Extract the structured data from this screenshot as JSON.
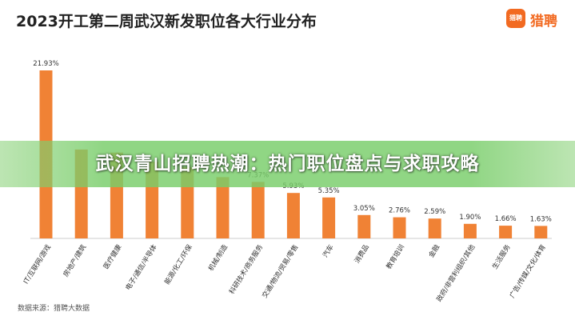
{
  "colors": {
    "bar": "#f08235",
    "brand": "#f26a21",
    "banner": "#78cd69"
  },
  "logo": {
    "badge_text": "猎聘",
    "text": "猎聘"
  },
  "overlay": {
    "banner_text": "武汉青山招聘热潮：热门职位盘点与求职攻略"
  },
  "source_text": "数据来源：猎聘大数据",
  "chart_data": {
    "type": "bar",
    "title": "2023开工第二周武汉新发职位各大行业分布",
    "xlabel": "",
    "ylabel": "",
    "ylim": [
      0,
      22
    ],
    "grid": false,
    "categories": [
      "IT/互联网/游戏",
      "房地产/建筑",
      "医疗健康",
      "电子/通信/半导体",
      "能源/化工/环保",
      "机械/制造",
      "科研技术/商务服务",
      "交通/物流/贸易/零售",
      "汽车",
      "消费品",
      "教育培训",
      "金融",
      "政府/非营利组织/其他",
      "生活服务",
      "广告/传媒/文化/体育"
    ],
    "values": [
      21.93,
      11.6,
      11.2,
      10.0,
      9.3,
      8.0,
      7.37,
      5.93,
      5.35,
      3.05,
      2.76,
      2.59,
      1.9,
      1.66,
      1.63
    ],
    "value_labels": [
      "21.93%",
      "",
      "",
      "",
      "",
      "",
      "7.37%",
      "5.93%",
      "5.35%",
      "3.05%",
      "2.76%",
      "2.59%",
      "1.90%",
      "1.66%",
      "1.63%"
    ]
  }
}
